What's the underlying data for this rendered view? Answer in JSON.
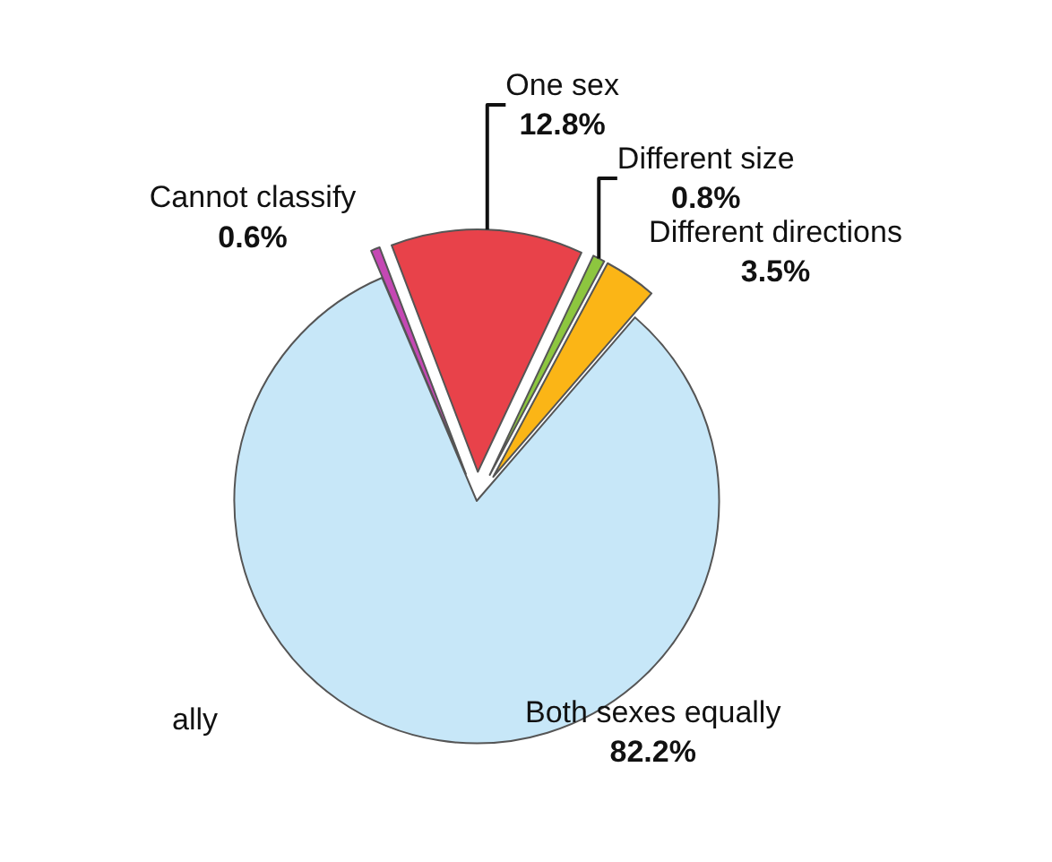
{
  "chart_data": {
    "type": "pie",
    "categories": [
      "Cannot classify",
      "One sex",
      "Different size",
      "Different directions",
      "Both sexes equally"
    ],
    "values": [
      0.6,
      12.8,
      0.8,
      3.5,
      82.2
    ],
    "value_labels": [
      "0.6%",
      "12.8%",
      "0.8%",
      "3.5%",
      "82.2%"
    ],
    "colors": [
      "#c548b4",
      "#e8424a",
      "#8dc63f",
      "#fbb516",
      "#c7e7f8"
    ],
    "annotations": [
      "ally"
    ],
    "legend": false
  }
}
